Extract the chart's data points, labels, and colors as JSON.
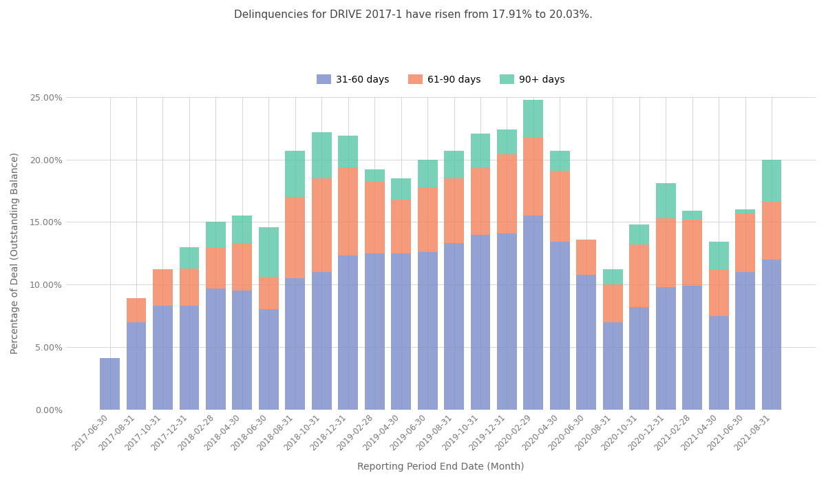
{
  "title": "Delinquencies for DRIVE 2017-1 have risen from 17.91% to 20.03%.",
  "xlabel": "Reporting Period End Date (Month)",
  "ylabel": "Percentage of Deal (Outstanding Balance)",
  "legend_labels": [
    "31-60 days",
    "61-90 days",
    "90+ days"
  ],
  "colors": [
    "#7b8ec8",
    "#f4845f",
    "#5bc8a8"
  ],
  "dates": [
    "2017-06-30",
    "2017-08-31",
    "2017-10-31",
    "2017-12-31",
    "2018-02-28",
    "2018-04-30",
    "2018-06-30",
    "2018-08-31",
    "2018-10-31",
    "2018-12-31",
    "2019-02-28",
    "2019-04-30",
    "2019-06-30",
    "2019-08-31",
    "2019-10-31",
    "2019-12-31",
    "2020-02-29",
    "2020-04-30",
    "2020-06-30",
    "2020-08-31",
    "2020-10-31",
    "2020-12-31",
    "2021-02-28",
    "2021-04-30",
    "2021-06-30",
    "2021-08-31"
  ],
  "s1": [
    0.041,
    0.07,
    0.083,
    0.083,
    0.097,
    0.095,
    0.08,
    0.105,
    0.11,
    0.123,
    0.125,
    0.125,
    0.126,
    0.133,
    0.14,
    0.141,
    0.155,
    0.134,
    0.108,
    0.07,
    0.082,
    0.098,
    0.099,
    0.075,
    0.11,
    0.12
  ],
  "s2": [
    0.0,
    0.019,
    0.029,
    0.03,
    0.033,
    0.038,
    0.026,
    0.065,
    0.075,
    0.071,
    0.057,
    0.043,
    0.052,
    0.052,
    0.053,
    0.063,
    0.063,
    0.057,
    0.028,
    0.03,
    0.05,
    0.055,
    0.053,
    0.037,
    0.047,
    0.046
  ],
  "s3": [
    0.0,
    0.0,
    0.0,
    0.017,
    0.02,
    0.022,
    0.04,
    0.037,
    0.037,
    0.025,
    0.01,
    0.017,
    0.022,
    0.022,
    0.028,
    0.02,
    0.03,
    0.016,
    0.0,
    0.012,
    0.016,
    0.028,
    0.007,
    0.022,
    0.003,
    0.034
  ],
  "figsize": [
    12.0,
    7.0
  ],
  "dpi": 100
}
